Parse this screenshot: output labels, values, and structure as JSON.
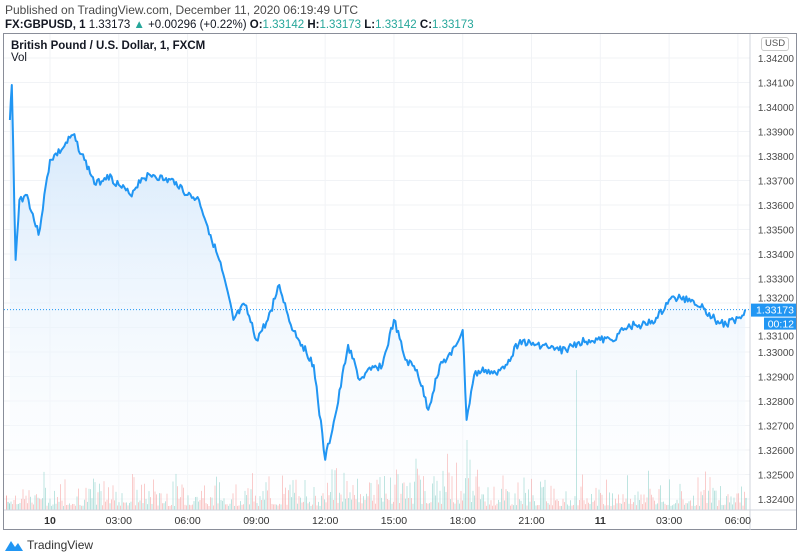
{
  "header": {
    "published": "Published on TradingView.com, December 11, 2020 06:19:49 UTC",
    "symbol": "FX:GBPUSD, 1",
    "last": "1.33173",
    "change": "+0.00296 (+0.22%)",
    "o_label": "O:",
    "o": "1.33142",
    "h_label": "H:",
    "h": "1.33173",
    "l_label": "L:",
    "l": "1.33142",
    "c_label": "C:",
    "c": "1.33173",
    "up_icon": "triangle-up-icon"
  },
  "legend": {
    "title": "British Pound / U.S. Dollar, 1, FXCM",
    "vol": "Vol"
  },
  "currency_button": "USD",
  "footer": {
    "brand": "TradingView"
  },
  "colors": {
    "line": "#2196f3",
    "fill": "#e3f0fc",
    "up": "#26a69a",
    "down": "#ef5350",
    "label_bg": "#2196f3"
  },
  "chart_data": {
    "type": "area",
    "ylim": [
      1.3235,
      1.343
    ],
    "y_ticks": [
      "1.34200",
      "1.34100",
      "1.34000",
      "1.33900",
      "1.33800",
      "1.33700",
      "1.33600",
      "1.33500",
      "1.33400",
      "1.33300",
      "1.33200",
      "1.33100",
      "1.33000",
      "1.32900",
      "1.32800",
      "1.32700",
      "1.32600",
      "1.32500",
      "1.32400"
    ],
    "x_ticks": [
      {
        "label": "10",
        "time": "2020-12-10 00:00",
        "bold": true
      },
      {
        "label": "03:00",
        "time": "2020-12-10 03:00"
      },
      {
        "label": "06:00",
        "time": "2020-12-10 06:00"
      },
      {
        "label": "09:00",
        "time": "2020-12-10 09:00"
      },
      {
        "label": "12:00",
        "time": "2020-12-10 12:00"
      },
      {
        "label": "15:00",
        "time": "2020-12-10 15:00"
      },
      {
        "label": "18:00",
        "time": "2020-12-10 18:00"
      },
      {
        "label": "21:00",
        "time": "2020-12-10 21:00"
      },
      {
        "label": "11",
        "time": "2020-12-11 00:00",
        "bold": true
      },
      {
        "label": "03:00",
        "time": "2020-12-11 03:00"
      },
      {
        "label": "06:00",
        "time": "2020-12-11 06:00"
      }
    ],
    "last_price_label": "1.33173",
    "countdown_label": "00:12",
    "series": [
      {
        "points": [
          [
            "2020-12-09 22:15",
            1.33947
          ],
          [
            "2020-12-09 22:20",
            1.3409
          ],
          [
            "2020-12-09 22:30",
            1.33376
          ],
          [
            "2020-12-09 22:40",
            1.33621
          ],
          [
            "2020-12-09 23:00",
            1.33641
          ],
          [
            "2020-12-09 23:30",
            1.33478
          ],
          [
            "2020-12-10 00:00",
            1.33784
          ],
          [
            "2020-12-10 00:30",
            1.33825
          ],
          [
            "2020-12-10 01:00",
            1.33886
          ],
          [
            "2020-12-10 01:30",
            1.33784
          ],
          [
            "2020-12-10 02:00",
            1.33682
          ],
          [
            "2020-12-10 02:30",
            1.33723
          ],
          [
            "2020-12-10 03:00",
            1.33682
          ],
          [
            "2020-12-10 03:30",
            1.33641
          ],
          [
            "2020-12-10 04:00",
            1.3371
          ],
          [
            "2020-12-10 04:30",
            1.33723
          ],
          [
            "2020-12-10 05:00",
            1.33702
          ],
          [
            "2020-12-10 05:30",
            1.33694
          ],
          [
            "2020-12-10 06:00",
            1.33641
          ],
          [
            "2020-12-10 06:30",
            1.33621
          ],
          [
            "2020-12-10 07:00",
            1.33478
          ],
          [
            "2020-12-10 07:30",
            1.33335
          ],
          [
            "2020-12-10 08:00",
            1.33131
          ],
          [
            "2020-12-10 08:30",
            1.33192
          ],
          [
            "2020-12-10 09:00",
            1.33049
          ],
          [
            "2020-12-10 09:30",
            1.33131
          ],
          [
            "2020-12-10 10:00",
            1.33274
          ],
          [
            "2020-12-10 10:30",
            1.33111
          ],
          [
            "2020-12-10 11:00",
            1.33029
          ],
          [
            "2020-12-10 11:30",
            1.32947
          ],
          [
            "2020-12-10 12:00",
            1.3256
          ],
          [
            "2020-12-10 12:30",
            1.32764
          ],
          [
            "2020-12-10 13:00",
            1.33029
          ],
          [
            "2020-12-10 13:30",
            1.32886
          ],
          [
            "2020-12-10 14:00",
            1.32927
          ],
          [
            "2020-12-10 14:30",
            1.32947
          ],
          [
            "2020-12-10 15:00",
            1.33131
          ],
          [
            "2020-12-10 15:30",
            1.32968
          ],
          [
            "2020-12-10 16:00",
            1.32927
          ],
          [
            "2020-12-10 16:30",
            1.32764
          ],
          [
            "2020-12-10 17:00",
            1.32947
          ],
          [
            "2020-12-10 17:30",
            1.32988
          ],
          [
            "2020-12-10 18:00",
            1.3309
          ],
          [
            "2020-12-10 18:10",
            1.32723
          ],
          [
            "2020-12-10 18:30",
            1.32907
          ],
          [
            "2020-12-10 19:00",
            1.32927
          ],
          [
            "2020-12-10 19:30",
            1.32907
          ],
          [
            "2020-12-10 20:00",
            1.32968
          ],
          [
            "2020-12-10 20:30",
            1.33049
          ],
          [
            "2020-12-10 21:00",
            1.33029
          ],
          [
            "2020-12-10 21:30",
            1.33029
          ],
          [
            "2020-12-10 22:00",
            1.33009
          ],
          [
            "2020-12-10 22:30",
            1.33009
          ],
          [
            "2020-12-10 23:00",
            1.33037
          ],
          [
            "2020-12-10 23:30",
            1.33049
          ],
          [
            "2020-12-11 00:00",
            1.33049
          ],
          [
            "2020-12-11 00:30",
            1.33049
          ],
          [
            "2020-12-11 01:00",
            1.3309
          ],
          [
            "2020-12-11 01:30",
            1.33111
          ],
          [
            "2020-12-11 02:00",
            1.33111
          ],
          [
            "2020-12-11 02:30",
            1.33139
          ],
          [
            "2020-12-11 03:00",
            1.33213
          ],
          [
            "2020-12-11 03:30",
            1.33221
          ],
          [
            "2020-12-11 04:00",
            1.33213
          ],
          [
            "2020-12-11 04:30",
            1.3318
          ],
          [
            "2020-12-11 05:00",
            1.33131
          ],
          [
            "2020-12-11 05:30",
            1.33111
          ],
          [
            "2020-12-11 06:00",
            1.33139
          ],
          [
            "2020-12-11 06:19",
            1.33173
          ]
        ]
      }
    ]
  }
}
